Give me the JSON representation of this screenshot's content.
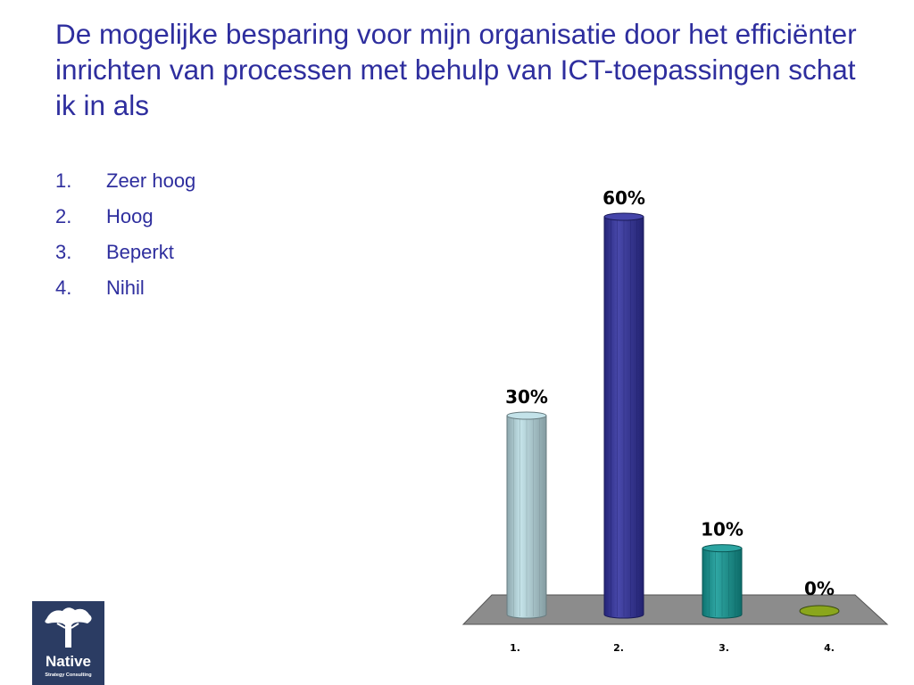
{
  "title": "De mogelijke besparing voor mijn organisatie door het efficiënter inrichten van processen met behulp van ICT-toepassingen schat ik in als",
  "options": [
    {
      "number": "1.",
      "label": "Zeer hoog"
    },
    {
      "number": "2.",
      "label": "Hoog"
    },
    {
      "number": "3.",
      "label": "Beperkt"
    },
    {
      "number": "4.",
      "label": "Nihil"
    }
  ],
  "logo": {
    "name": "Native",
    "subtitle": "Strategy Consulting"
  },
  "chart_data": {
    "type": "bar",
    "style": "3d-cylinder",
    "categories": [
      "1.",
      "2.",
      "3.",
      "4."
    ],
    "values": [
      30,
      60,
      10,
      0
    ],
    "value_labels": [
      "30%",
      "60%",
      "10%",
      "0%"
    ],
    "colors": [
      "#bcdfe6",
      "#3030a0",
      "#139a96",
      "#8aa61c"
    ],
    "floor_color": "#8c8c8c",
    "ylim": [
      0,
      60
    ],
    "title": "",
    "xlabel": "",
    "ylabel": "",
    "grid": false,
    "legend": "none"
  }
}
